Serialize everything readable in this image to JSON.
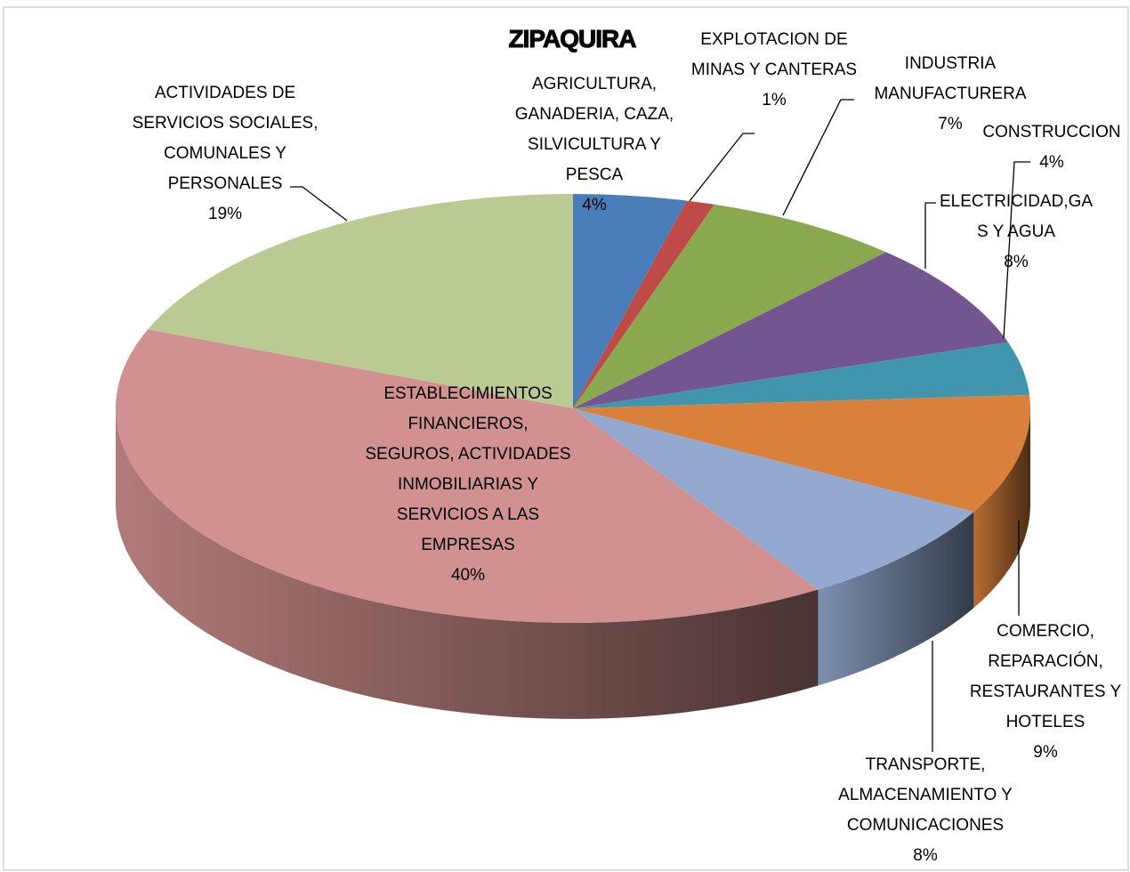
{
  "chart_data": {
    "type": "pie",
    "title": "ZIPAQUIRA",
    "categories": [
      "AGRICULTURA, GANADERIA, CAZA, SILVICULTURA Y PESCA",
      "EXPLOTACION DE MINAS Y CANTERAS",
      "INDUSTRIA MANUFACTURERA",
      "ELECTRICIDAD,GAS Y AGUA",
      "CONSTRUCCION",
      "COMERCIO, REPARACIÓN, RESTAURANTES Y HOTELES",
      "TRANSPORTE, ALMACENAMIENTO Y COMUNICACIONES",
      "ESTABLECIMIENTOS FINANCIEROS, SEGUROS, ACTIVIDADES INMOBILIARIAS Y SERVICIOS A LAS EMPRESAS",
      "ACTIVIDADES DE SERVICIOS SOCIALES, COMUNALES Y PERSONALES"
    ],
    "values": [
      4,
      1,
      7,
      8,
      4,
      9,
      8,
      40,
      19
    ],
    "value_labels": [
      "4%",
      "1%",
      "7%",
      "8%",
      "4%",
      "9%",
      "8%",
      "40%",
      "19%"
    ],
    "colors": [
      "#4a7ebb",
      "#be4b48",
      "#8aa84e",
      "#735690",
      "#4196ad",
      "#d9803b",
      "#93a9cf",
      "#d09190",
      "#b9cb93"
    ]
  }
}
